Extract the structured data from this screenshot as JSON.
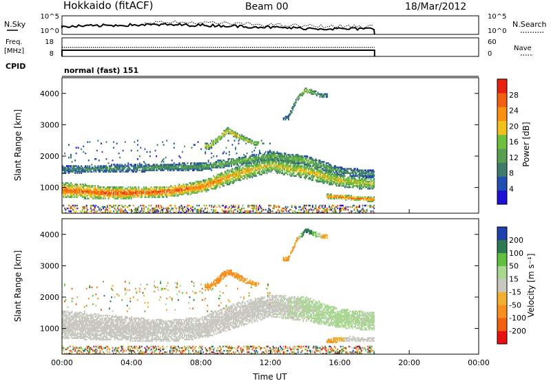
{
  "header": {
    "site": "Hokkaido (fitACF)",
    "beam": "Beam 00",
    "date": "18/Mar/2012"
  },
  "top_panels": {
    "nsky_label": "N.Sky",
    "nsky_ticks": [
      "10^5",
      "10^0"
    ],
    "nsearch_label": "N.Search",
    "freq_label_line1": "Freq.",
    "freq_label_line2": "[MHz]",
    "freq_ticks": [
      "18",
      "8"
    ],
    "nave_label": "Nave",
    "nave_ticks": [
      "60",
      "0"
    ],
    "cpid_label": "CPID",
    "cpid_value": "normal (fast) 151"
  },
  "colors": {
    "power": [
      "#1f10d8",
      "#2050b0",
      "#3c7c68",
      "#58a050",
      "#70c040",
      "#f0c020",
      "#f89010",
      "#f06010",
      "#e82010"
    ],
    "velocity": [
      "#e81010",
      "#f06010",
      "#f89020",
      "#f0b030",
      "#c8c8c0",
      "#a8d890",
      "#60c040",
      "#2e7a50",
      "#2040b0"
    ]
  },
  "chart_data": [
    {
      "type": "heatmap",
      "panel": "power",
      "ylabel": "Slant Range [km]",
      "x_ticks": [
        "00:00",
        "04:00",
        "08:00",
        "12:00",
        "16:00",
        "20:00",
        "00:00"
      ],
      "xlim_hours": [
        0,
        24
      ],
      "data_end_hour": 18,
      "ylim": [
        180,
        4500
      ],
      "y_ticks": [
        1000,
        2000,
        3000,
        4000
      ],
      "colorbar": {
        "label": "Power [dB]",
        "ticks": [
          4,
          8,
          12,
          16,
          20,
          24,
          28
        ],
        "range": [
          0,
          32
        ]
      },
      "features": [
        {
          "feature": "main_band",
          "hours": [
            0,
            3,
            6,
            8,
            10,
            12,
            14,
            16,
            18
          ],
          "center_km": [
            900,
            800,
            850,
            1000,
            1400,
            1700,
            1500,
            1200,
            1100
          ],
          "width_km": [
            500,
            400,
            350,
            400,
            500,
            450,
            500,
            400,
            400
          ],
          "level_db": [
            26,
            28,
            28,
            26,
            22,
            20,
            20,
            20,
            18
          ]
        },
        {
          "feature": "upper_band",
          "hours": [
            0,
            4,
            8,
            10,
            12,
            14,
            16,
            18
          ],
          "center_km": [
            1550,
            1600,
            1650,
            1800,
            2000,
            1850,
            1500,
            1400
          ],
          "width_km": [
            250,
            250,
            250,
            250,
            300,
            300,
            250,
            250
          ],
          "level_db": [
            10,
            11,
            12,
            16,
            14,
            16,
            12,
            10
          ]
        },
        {
          "feature": "rising_arc",
          "hours": [
            8.5,
            9.5,
            10.2,
            11
          ],
          "center_km": [
            2300,
            2800,
            2600,
            2400
          ],
          "width_km": [
            200,
            200,
            180,
            150
          ],
          "level_db": [
            18,
            22,
            20,
            18
          ]
        },
        {
          "feature": "high_echoes",
          "hours": [
            13,
            13.5,
            14,
            15
          ],
          "center_km": [
            3200,
            3800,
            4100,
            3900
          ],
          "width_km": [
            150,
            150,
            150,
            150
          ],
          "level_db": [
            10,
            14,
            20,
            10
          ]
        },
        {
          "feature": "low_band_late",
          "hours": [
            15.5,
            16.5,
            18
          ],
          "center_km": [
            700,
            650,
            600
          ],
          "width_km": [
            150,
            150,
            150
          ],
          "level_db": [
            26,
            28,
            26
          ]
        }
      ]
    },
    {
      "type": "heatmap",
      "panel": "velocity",
      "ylabel": "Slant Range [km]",
      "xlabel": "Time UT",
      "x_ticks": [
        "00:00",
        "04:00",
        "08:00",
        "12:00",
        "16:00",
        "20:00",
        "00:00"
      ],
      "xlim_hours": [
        0,
        24
      ],
      "data_end_hour": 18,
      "ylim": [
        180,
        4500
      ],
      "y_ticks": [
        1000,
        2000,
        3000,
        4000
      ],
      "colorbar": {
        "label": "Velocity [m s⁻¹]",
        "ticks": [
          -200,
          -100,
          -50,
          -15,
          15,
          50,
          100,
          200
        ],
        "range": [
          -250,
          250
        ]
      },
      "features": [
        {
          "feature": "main_band",
          "hours": [
            0,
            3,
            6,
            8,
            10,
            12,
            14,
            16,
            18
          ],
          "center_km": [
            1100,
            1000,
            900,
            1000,
            1400,
            1700,
            1600,
            1300,
            1200
          ],
          "width_km": [
            900,
            800,
            700,
            700,
            800,
            700,
            800,
            600,
            600
          ],
          "velocity": [
            0,
            0,
            0,
            0,
            0,
            0,
            20,
            30,
            20
          ]
        },
        {
          "feature": "rising_arc",
          "hours": [
            8.5,
            9.5,
            10.2,
            11
          ],
          "center_km": [
            2300,
            2800,
            2600,
            2400
          ],
          "width_km": [
            200,
            220,
            180,
            150
          ],
          "velocity": [
            -60,
            -70,
            -60,
            -50
          ]
        },
        {
          "feature": "high_echoes",
          "hours": [
            13,
            13.5,
            14,
            15
          ],
          "center_km": [
            3200,
            3800,
            4100,
            3900
          ],
          "width_km": [
            150,
            150,
            150,
            150
          ],
          "velocity": [
            -50,
            -60,
            200,
            -40
          ]
        },
        {
          "feature": "low_patch",
          "hours": [
            15.5,
            16.5,
            18
          ],
          "center_km": [
            600,
            650,
            620
          ],
          "width_km": [
            150,
            150,
            150
          ],
          "velocity": [
            -60,
            0,
            0
          ]
        }
      ]
    }
  ]
}
